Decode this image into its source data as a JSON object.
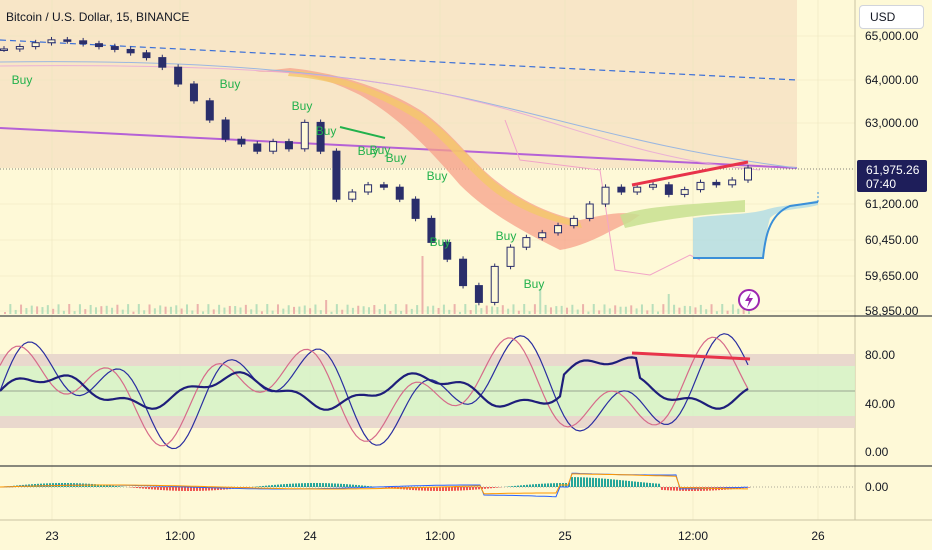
{
  "header": {
    "symbol_title": "Bitcoin / U.S. Dollar, 15, BINANCE",
    "currency": "USD"
  },
  "colors": {
    "background": "#fef9d7",
    "candle_body": "#2a2e6b",
    "buy_signal": "#22b14c",
    "price_badge": "#1e1e5a",
    "divergence_line": "#e8334a",
    "trendline": "#b561d6",
    "channel_line": "#3a6fd8",
    "cloud_fill": "#a9d8e6",
    "ribbon_warm": "#f7a08a",
    "stoch_band": "#d7f2c8",
    "stoch_k": "#1e1e8a",
    "stoch_d": "#d66b8a"
  },
  "icons": {
    "alert_badge": "lightning-icon"
  },
  "chart_data": {
    "type": "candlestick",
    "x_ticks": [
      "23",
      "12:00",
      "24",
      "12:00",
      "25",
      "12:00",
      "26"
    ],
    "price_axis": {
      "ticks": [
        "65,000.00",
        "64,000.00",
        "63,000.00",
        "61,200.00",
        "60,450.00",
        "59,650.00",
        "58,950.00"
      ],
      "ylim": [
        58950,
        65000
      ]
    },
    "current_price": {
      "value": "61,975.26",
      "countdown": "07:40"
    },
    "price_series": [
      64430,
      64480,
      64560,
      64620,
      64600,
      64540,
      64480,
      64420,
      64350,
      64250,
      64050,
      63700,
      63350,
      62950,
      62550,
      62450,
      62300,
      62500,
      62350,
      62900,
      62300,
      61300,
      61450,
      61600,
      61550,
      61300,
      60900,
      60400,
      60050,
      59500,
      59150,
      59900,
      60300,
      60500,
      60600,
      60750,
      60900,
      61200,
      61550,
      61450,
      61550,
      61600,
      61400,
      61500,
      61650,
      61600,
      61700,
      61950
    ],
    "buy_signals": [
      "Buy",
      "Buy",
      "Buy",
      "Buy",
      "Buy",
      "Buy",
      "Buy",
      "Buy",
      "Buy",
      "Buy",
      "Buy"
    ],
    "stochastic": {
      "ticks": [
        "80.00",
        "40.00",
        "0.00"
      ],
      "overbought": 80,
      "oversold": 20,
      "ylim": [
        0,
        100
      ]
    },
    "macd": {
      "ticks": [
        "0.00"
      ]
    }
  }
}
